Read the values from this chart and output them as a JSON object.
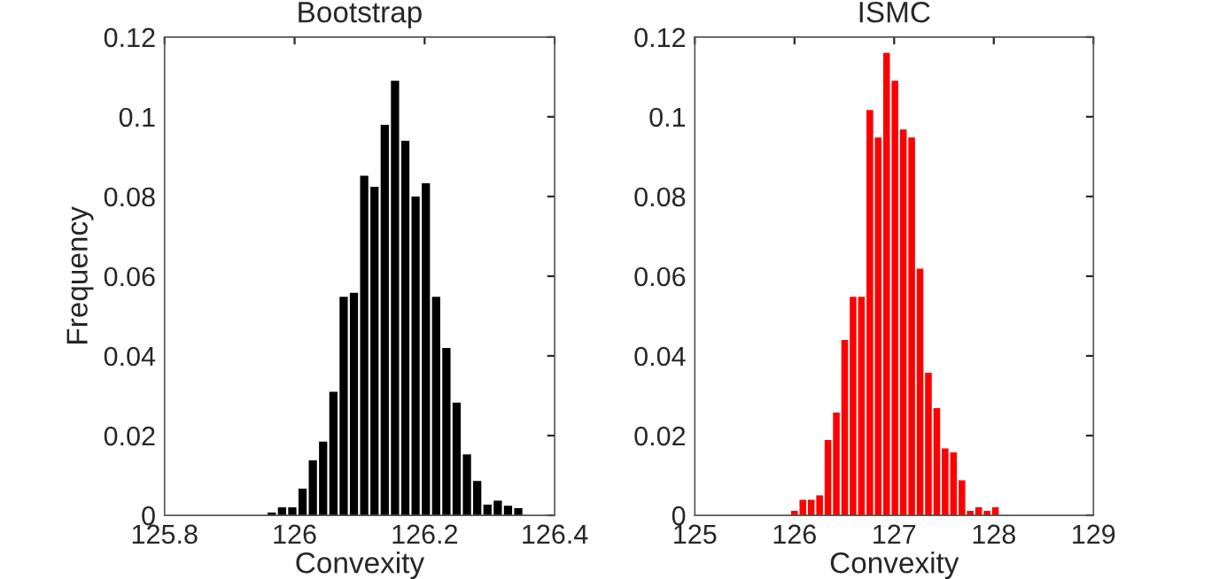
{
  "chart_data": [
    {
      "type": "histogram",
      "title": "Bootstrap",
      "xlabel": "Convexity",
      "ylabel": "Frequency",
      "color": "#000000",
      "bins": [
        125.957,
        125.9728,
        125.9886,
        126.0044,
        126.0202,
        126.036,
        126.0518,
        126.0676,
        126.0834,
        126.0992,
        126.115,
        126.1308,
        126.1466,
        126.1624,
        126.1782,
        126.194,
        126.2098,
        126.2256,
        126.2414,
        126.2572,
        126.273,
        126.2888,
        126.3046,
        126.3204,
        126.3362,
        126.352
      ],
      "values": [
        0.0007,
        0.002,
        0.002,
        0.0067,
        0.0138,
        0.0185,
        0.031,
        0.0548,
        0.0558,
        0.0852,
        0.0824,
        0.098,
        0.109,
        0.094,
        0.08,
        0.0833,
        0.0548,
        0.042,
        0.0283,
        0.0153,
        0.0086,
        0.0027,
        0.0037,
        0.0024,
        0.0018
      ],
      "xlim": [
        125.8,
        126.4
      ],
      "xticks": [
        125.8,
        126,
        126.2,
        126.4
      ],
      "ylim": [
        0,
        0.12
      ],
      "yticks": [
        0,
        0.02,
        0.04,
        0.06,
        0.08,
        {
          "value": 0.1,
          "label": "0.1"
        },
        0.12
      ],
      "grid": false
    },
    {
      "type": "histogram",
      "title": "ISMC",
      "xlabel": "Convexity",
      "color": "#ff0000",
      "bins": [
        125.958,
        126.042,
        126.126,
        126.21,
        126.294,
        126.378,
        126.462,
        126.546,
        126.63,
        126.714,
        126.798,
        126.882,
        126.966,
        127.05,
        127.134,
        127.218,
        127.302,
        127.386,
        127.47,
        127.554,
        127.638,
        127.722,
        127.806,
        127.89,
        127.974,
        128.058
      ],
      "values": [
        0.0011,
        0.0039,
        0.0039,
        0.005,
        0.0189,
        0.0258,
        0.044,
        0.0548,
        0.0548,
        0.1017,
        0.0948,
        0.116,
        0.109,
        0.0968,
        0.0948,
        0.0619,
        0.0358,
        0.0269,
        0.0168,
        0.0158,
        0.0088,
        0.0011,
        0.002,
        0.0011,
        0.002
      ],
      "xlim": [
        125,
        129
      ],
      "xticks": [
        125,
        126,
        127,
        128,
        129
      ],
      "ylim": [
        0,
        0.12
      ],
      "yticks": [
        0,
        0.02,
        0.04,
        0.06,
        0.08,
        {
          "value": 0.1,
          "label": "0.1"
        },
        0.12
      ],
      "grid": false
    }
  ]
}
